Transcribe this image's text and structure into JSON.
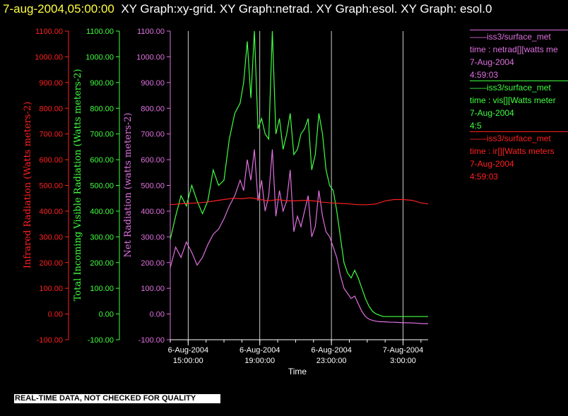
{
  "header": {
    "timestamp": "7-aug-2004,05:00:00",
    "title": "XY Graph:xy-grid.  XY Graph:netrad.  XY Graph:esol.  XY Graph: esol.0"
  },
  "footer": {
    "text": "REAL-TIME DATA, NOT CHECKED FOR QUALITY"
  },
  "legend": [
    {
      "source": "iss3/surface_met",
      "var": "time : netrad[][watts me",
      "date": "7-Aug-2004",
      "time": "4:59:03",
      "color": "#e070e0"
    },
    {
      "source": "iss3/surface_met",
      "var": "time : vis[][Watts meter",
      "date": "7-Aug-2004",
      "time": "4:5",
      "color": "#40ff40"
    },
    {
      "source": "iss3/surface_met",
      "var": "time : ir[][Watts meters",
      "date": "7-Aug-2004",
      "time": "4:59:03",
      "color": "#ff2020"
    }
  ],
  "chart_data": {
    "type": "line",
    "xlabel": "Time",
    "x_ticks": [
      {
        "at": 15,
        "l1": "6-Aug-2004",
        "l2": "15:00:00"
      },
      {
        "at": 19,
        "l1": "6-Aug-2004",
        "l2": "19:00:00"
      },
      {
        "at": 23,
        "l1": "6-Aug-2004",
        "l2": "23:00:00"
      },
      {
        "at": 27,
        "l1": "7-Aug-2004",
        "l2": "3:00:00"
      }
    ],
    "xlim": [
      14.0,
      28.4
    ],
    "ylim": [
      -100,
      1100
    ],
    "y_ticks": [
      "-100.00",
      "0.00",
      "100.00",
      "200.00",
      "300.00",
      "400.00",
      "500.00",
      "600.00",
      "700.00",
      "800.00",
      "900.00",
      "1000.00",
      "1100.00"
    ],
    "axes": [
      {
        "label": "Infrared Radiation (Watts meters-2)",
        "color": "#ff2020"
      },
      {
        "label": "Total Incoming Visible Radiation (Watts meters-2)",
        "color": "#40ff40"
      },
      {
        "label": "Net Radiation (watts meters-2)",
        "color": "#e070e0"
      }
    ],
    "grid": true,
    "series": [
      {
        "color": "#40ff40",
        "x": [
          14.0,
          14.3,
          14.6,
          14.9,
          15.2,
          15.5,
          15.8,
          16.1,
          16.4,
          16.7,
          17.0,
          17.3,
          17.6,
          17.9,
          18.1,
          18.3,
          18.5,
          18.7,
          18.9,
          19.1,
          19.3,
          19.5,
          19.7,
          19.9,
          20.1,
          20.3,
          20.5,
          20.7,
          20.9,
          21.1,
          21.3,
          21.5,
          21.7,
          21.9,
          22.1,
          22.3,
          22.5,
          22.7,
          22.9,
          23.1,
          23.3,
          23.5,
          23.7,
          23.9,
          24.1,
          24.3,
          24.5,
          24.7,
          24.9,
          25.1,
          25.3,
          25.5,
          25.7,
          25.9,
          26.1,
          26.3,
          26.5,
          26.8,
          27.2,
          27.6,
          28.0,
          28.4
        ],
        "y": [
          290,
          380,
          460,
          420,
          500,
          440,
          390,
          440,
          560,
          500,
          520,
          680,
          780,
          820,
          900,
          1060,
          840,
          1100,
          720,
          760,
          700,
          680,
          1100,
          700,
          760,
          640,
          700,
          780,
          620,
          640,
          700,
          720,
          760,
          560,
          620,
          780,
          700,
          560,
          500,
          480,
          400,
          300,
          200,
          160,
          140,
          170,
          140,
          100,
          60,
          30,
          10,
          0,
          -5,
          -10,
          -10,
          -10,
          -10,
          -10,
          -10,
          -10,
          -10,
          -10
        ]
      },
      {
        "color": "#e070e0",
        "x": [
          14.0,
          14.3,
          14.6,
          14.9,
          15.2,
          15.5,
          15.8,
          16.1,
          16.4,
          16.7,
          17.0,
          17.3,
          17.6,
          17.9,
          18.1,
          18.3,
          18.5,
          18.7,
          18.9,
          19.1,
          19.3,
          19.5,
          19.7,
          19.9,
          20.1,
          20.3,
          20.5,
          20.7,
          20.9,
          21.1,
          21.3,
          21.5,
          21.7,
          21.9,
          22.1,
          22.3,
          22.5,
          22.7,
          22.9,
          23.1,
          23.3,
          23.5,
          23.7,
          23.9,
          24.1,
          24.3,
          24.5,
          24.7,
          24.9,
          25.1,
          25.3,
          25.5,
          25.7,
          25.9,
          26.1,
          26.3,
          26.5,
          26.8,
          27.2,
          27.6,
          28.0,
          28.4
        ],
        "y": [
          180,
          260,
          220,
          280,
          240,
          190,
          220,
          270,
          310,
          330,
          370,
          420,
          460,
          520,
          480,
          600,
          520,
          640,
          440,
          520,
          400,
          460,
          640,
          380,
          480,
          400,
          440,
          560,
          320,
          380,
          340,
          400,
          460,
          300,
          340,
          480,
          380,
          320,
          300,
          260,
          220,
          150,
          100,
          80,
          60,
          70,
          40,
          10,
          -10,
          -20,
          -25,
          -28,
          -30,
          -30,
          -31,
          -32,
          -32,
          -33,
          -34,
          -35,
          -37,
          -38
        ]
      },
      {
        "color": "#ff2020",
        "x": [
          14.0,
          14.5,
          15.0,
          15.5,
          16.0,
          16.5,
          17.0,
          17.5,
          18.0,
          18.5,
          19.0,
          19.5,
          20.0,
          20.5,
          21.0,
          21.5,
          22.0,
          22.5,
          23.0,
          23.5,
          24.0,
          24.5,
          25.0,
          25.5,
          26.0,
          26.5,
          27.0,
          27.5,
          28.0,
          28.4
        ],
        "y": [
          425,
          428,
          430,
          432,
          435,
          440,
          445,
          450,
          448,
          452,
          445,
          440,
          445,
          440,
          440,
          442,
          440,
          435,
          432,
          430,
          428,
          425,
          425,
          428,
          440,
          445,
          445,
          442,
          432,
          428
        ]
      }
    ]
  }
}
